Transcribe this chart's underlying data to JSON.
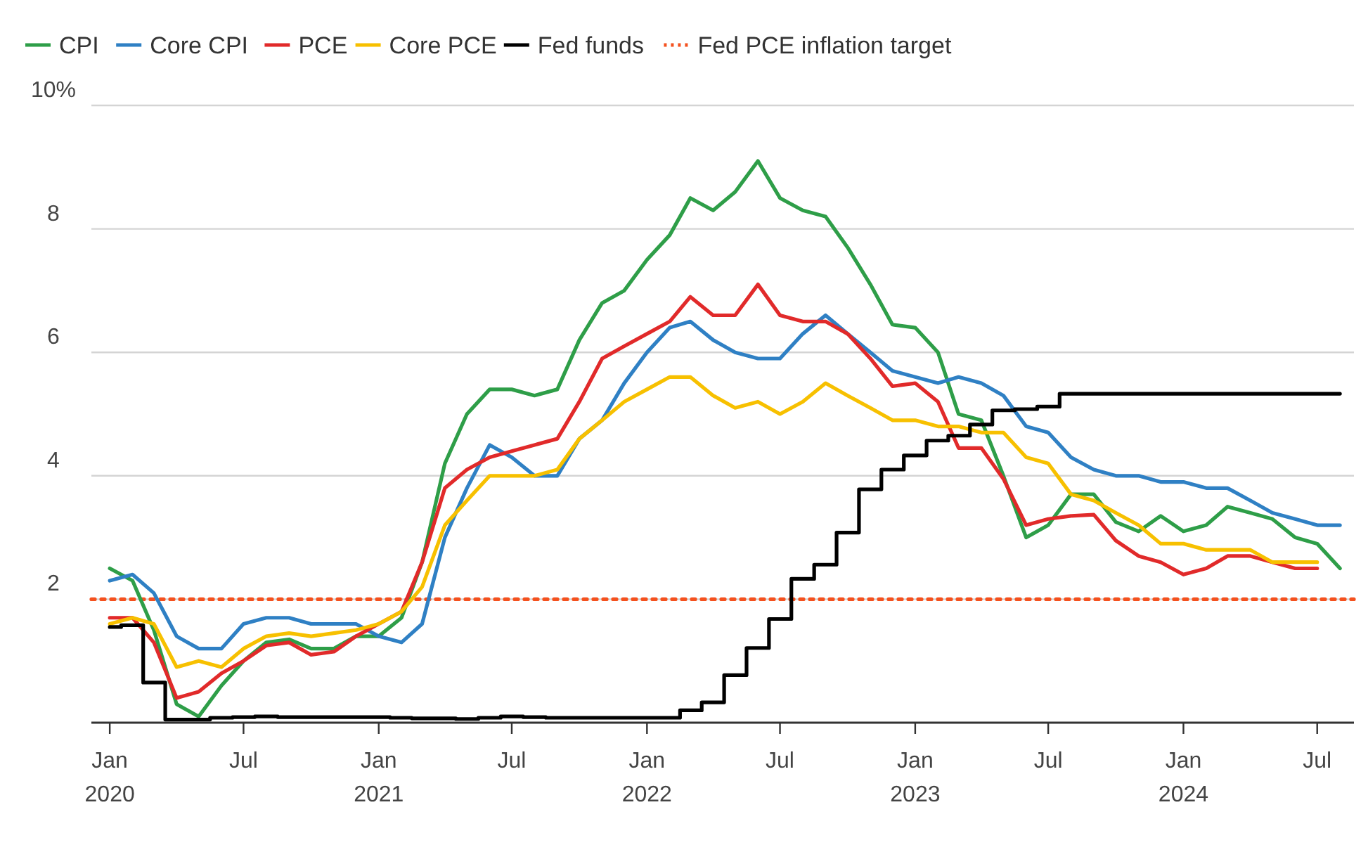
{
  "chart_data": {
    "type": "line",
    "x": [
      "2020-01",
      "2020-02",
      "2020-03",
      "2020-04",
      "2020-05",
      "2020-06",
      "2020-07",
      "2020-08",
      "2020-09",
      "2020-10",
      "2020-11",
      "2020-12",
      "2021-01",
      "2021-02",
      "2021-03",
      "2021-04",
      "2021-05",
      "2021-06",
      "2021-07",
      "2021-08",
      "2021-09",
      "2021-10",
      "2021-11",
      "2021-12",
      "2022-01",
      "2022-02",
      "2022-03",
      "2022-04",
      "2022-05",
      "2022-06",
      "2022-07",
      "2022-08",
      "2022-09",
      "2022-10",
      "2022-11",
      "2022-12",
      "2023-01",
      "2023-02",
      "2023-03",
      "2023-04",
      "2023-05",
      "2023-06",
      "2023-07",
      "2023-08",
      "2023-09",
      "2023-10",
      "2023-11",
      "2023-12",
      "2024-01",
      "2024-02",
      "2024-03",
      "2024-04",
      "2024-05",
      "2024-06",
      "2024-07",
      "2024-08"
    ],
    "series": [
      {
        "name": "CPI",
        "color": "#2e9e48",
        "values": [
          2.5,
          2.3,
          1.5,
          0.3,
          0.1,
          0.6,
          1.0,
          1.3,
          1.35,
          1.2,
          1.2,
          1.4,
          1.4,
          1.7,
          2.6,
          4.2,
          5.0,
          5.4,
          5.4,
          5.3,
          5.4,
          6.2,
          6.8,
          7.0,
          7.5,
          7.9,
          8.5,
          8.3,
          8.6,
          9.1,
          8.5,
          8.3,
          8.2,
          7.7,
          7.1,
          6.45,
          6.4,
          6.0,
          5.0,
          4.9,
          4.0,
          3.0,
          3.2,
          3.7,
          3.7,
          3.25,
          3.1,
          3.35,
          3.1,
          3.2,
          3.5,
          3.4,
          3.3,
          3.0,
          2.9,
          2.5
        ]
      },
      {
        "name": "Core CPI",
        "color": "#2f80c4",
        "values": [
          2.3,
          2.4,
          2.1,
          1.4,
          1.2,
          1.2,
          1.6,
          1.7,
          1.7,
          1.6,
          1.6,
          1.6,
          1.4,
          1.3,
          1.6,
          3.0,
          3.8,
          4.5,
          4.3,
          4.0,
          4.0,
          4.6,
          4.9,
          5.5,
          6.0,
          6.4,
          6.5,
          6.2,
          6.0,
          5.9,
          5.9,
          6.3,
          6.6,
          6.3,
          6.0,
          5.7,
          5.6,
          5.5,
          5.6,
          5.5,
          5.3,
          4.8,
          4.7,
          4.3,
          4.1,
          4.0,
          4.0,
          3.9,
          3.9,
          3.8,
          3.8,
          3.6,
          3.4,
          3.3,
          3.2,
          3.2
        ]
      },
      {
        "name": "PCE",
        "color": "#e12a2a",
        "values": [
          1.7,
          1.7,
          1.3,
          0.4,
          0.5,
          0.8,
          1.0,
          1.25,
          1.3,
          1.1,
          1.15,
          1.4,
          1.6,
          1.8,
          2.6,
          3.8,
          4.1,
          4.3,
          4.4,
          4.5,
          4.6,
          5.2,
          5.9,
          6.1,
          6.3,
          6.5,
          6.9,
          6.6,
          6.6,
          7.1,
          6.6,
          6.5,
          6.5,
          6.3,
          5.9,
          5.45,
          5.5,
          5.2,
          4.45,
          4.45,
          3.95,
          3.2,
          3.3,
          3.35,
          3.37,
          2.95,
          2.7,
          2.6,
          2.4,
          2.5,
          2.7,
          2.7,
          2.6,
          2.5,
          2.5,
          null
        ]
      },
      {
        "name": "Core PCE",
        "color": "#f7c000",
        "values": [
          1.6,
          1.7,
          1.6,
          0.9,
          1.0,
          0.9,
          1.2,
          1.4,
          1.45,
          1.4,
          1.45,
          1.5,
          1.6,
          1.8,
          2.2,
          3.2,
          3.6,
          4.0,
          4.0,
          4.0,
          4.1,
          4.6,
          4.9,
          5.2,
          5.4,
          5.6,
          5.6,
          5.3,
          5.1,
          5.2,
          5.0,
          5.2,
          5.5,
          5.3,
          5.1,
          4.9,
          4.9,
          4.8,
          4.8,
          4.7,
          4.7,
          4.3,
          4.2,
          3.7,
          3.6,
          3.4,
          3.2,
          2.9,
          2.9,
          2.8,
          2.8,
          2.8,
          2.6,
          2.6,
          2.6,
          null
        ]
      },
      {
        "name": "Fed funds",
        "type": "step",
        "color": "#000000",
        "values": [
          1.55,
          1.58,
          0.65,
          0.05,
          0.05,
          0.08,
          0.09,
          0.1,
          0.09,
          0.09,
          0.09,
          0.09,
          0.09,
          0.08,
          0.07,
          0.07,
          0.06,
          0.08,
          0.1,
          0.09,
          0.08,
          0.08,
          0.08,
          0.08,
          0.08,
          0.08,
          0.2,
          0.33,
          0.77,
          1.21,
          1.68,
          2.33,
          2.56,
          3.08,
          3.78,
          4.1,
          4.33,
          4.57,
          4.65,
          4.83,
          5.06,
          5.08,
          5.12,
          5.33,
          5.33,
          5.33,
          5.33,
          5.33,
          5.33,
          5.33,
          5.33,
          5.33,
          5.33,
          5.33,
          5.33,
          5.33
        ]
      }
    ],
    "ref_lines": [
      {
        "axis": "y",
        "value": 2,
        "label": "Fed PCE inflation target",
        "color": "#f4511e",
        "line_style": "dotted"
      }
    ],
    "xlim": [
      "2019-12-07",
      "2024-08-20"
    ],
    "xticks": [
      {
        "value": "2020-01",
        "label": "Jan\n2020"
      },
      {
        "value": "2020-07",
        "label": "Jul"
      },
      {
        "value": "2021-01",
        "label": "Jan\n2021"
      },
      {
        "value": "2021-07",
        "label": "Jul"
      },
      {
        "value": "2022-01",
        "label": "Jan\n2022"
      },
      {
        "value": "2022-07",
        "label": "Jul"
      },
      {
        "value": "2023-01",
        "label": "Jan\n2023"
      },
      {
        "value": "2023-07",
        "label": "Jul"
      },
      {
        "value": "2024-01",
        "label": "Jan\n2024"
      },
      {
        "value": "2024-07",
        "label": "Jul"
      }
    ],
    "ylim": [
      0,
      10
    ],
    "yticks": [
      {
        "value": 0,
        "label": null
      },
      2,
      4,
      6,
      8,
      {
        "value": 10,
        "label": "10%"
      }
    ],
    "grid": "y",
    "legend": "top left",
    "line_style": "solid",
    "marker": "none"
  }
}
